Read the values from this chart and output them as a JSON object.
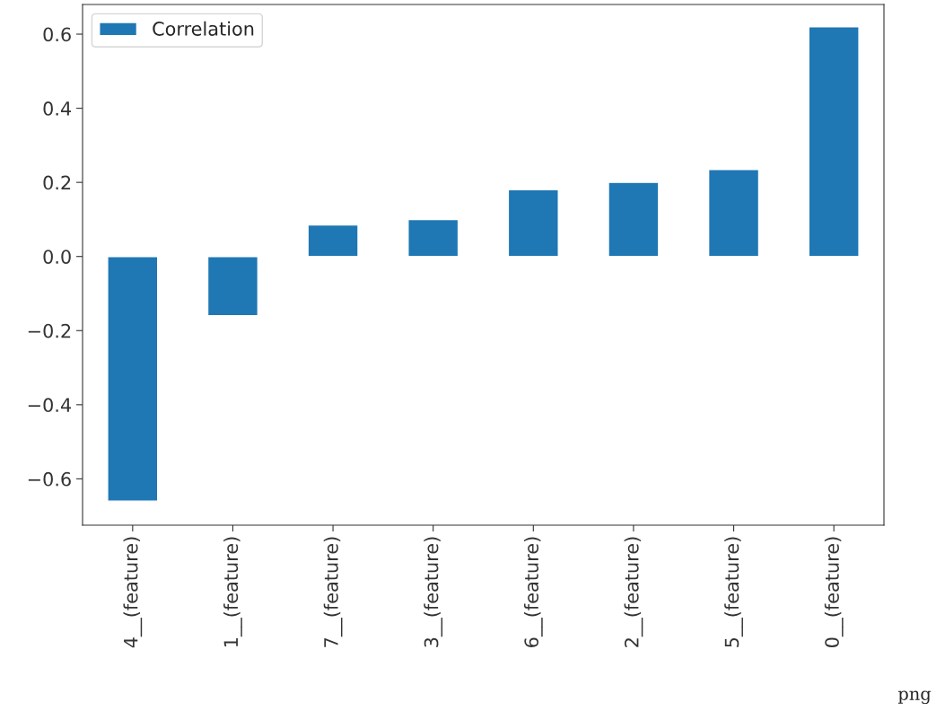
{
  "chart_data": {
    "type": "bar",
    "categories": [
      "4__(feature)",
      "1__(feature)",
      "7__(feature)",
      "3__(feature)",
      "6__(feature)",
      "2__(feature)",
      "5__(feature)",
      "0__(feature)"
    ],
    "series": [
      {
        "name": "Correlation",
        "color": "#1f77b4",
        "values": [
          -0.66,
          -0.16,
          0.085,
          0.1,
          0.18,
          0.2,
          0.235,
          0.62
        ]
      }
    ],
    "ylim": [
      -0.725,
      0.68
    ],
    "yticks": [
      {
        "value": -0.6,
        "label": "−0.6"
      },
      {
        "value": -0.4,
        "label": "−0.4"
      },
      {
        "value": -0.2,
        "label": "−0.2"
      },
      {
        "value": 0.0,
        "label": "0.0"
      },
      {
        "value": 0.2,
        "label": "0.2"
      },
      {
        "value": 0.4,
        "label": "0.4"
      },
      {
        "value": 0.6,
        "label": "0.6"
      }
    ],
    "legend": "top left",
    "grid": false,
    "annotations": [
      "png"
    ]
  }
}
